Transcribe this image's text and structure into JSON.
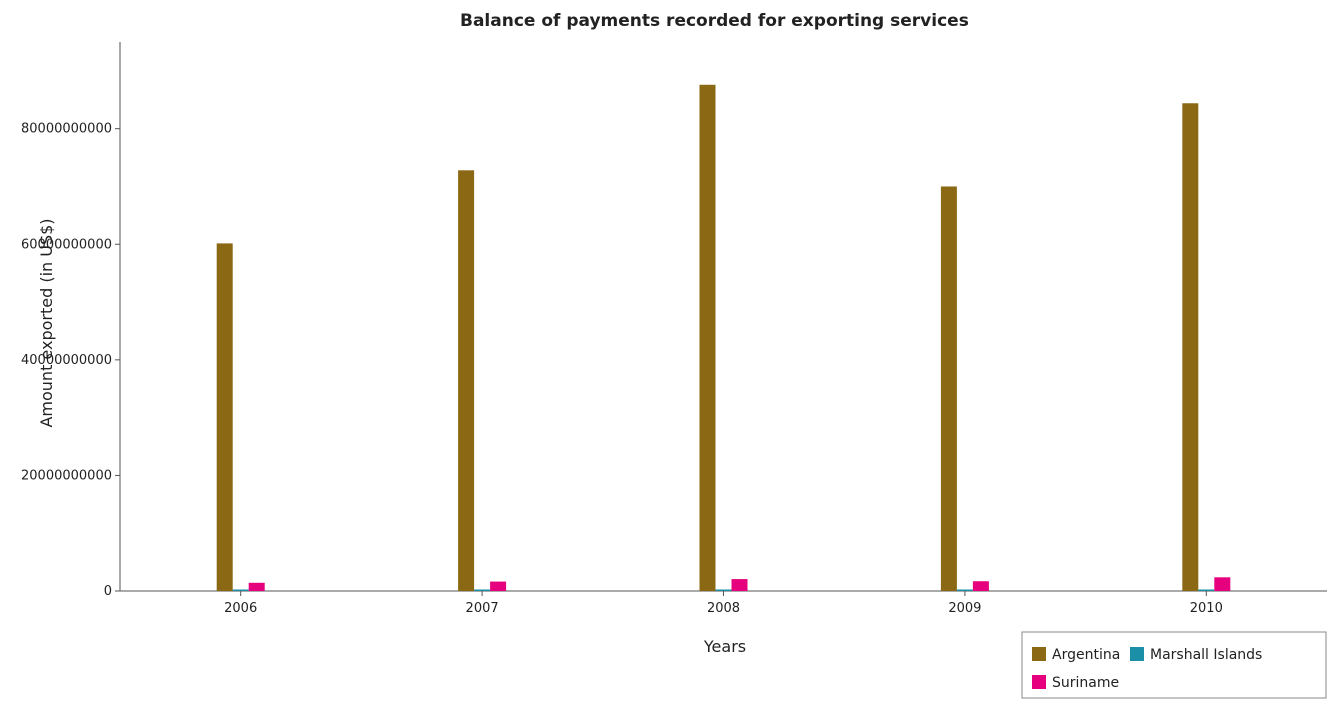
{
  "chart_data": {
    "type": "bar",
    "title": "Balance of payments recorded for exporting services",
    "xlabel": "Years",
    "ylabel": "Amount exported (in US$)",
    "categories": [
      "2006",
      "2007",
      "2008",
      "2009",
      "2010"
    ],
    "series": [
      {
        "name": "Argentina",
        "color": "#8b6914",
        "values": [
          60150000000,
          72800000000,
          87600000000,
          70000000000,
          84400000000
        ]
      },
      {
        "name": "Marshall Islands",
        "color": "#1c8fa8",
        "values": [
          45000000,
          46000000,
          47000000,
          48000000,
          50000000
        ]
      },
      {
        "name": "Suriname",
        "color": "#e6007e",
        "values": [
          1420000000,
          1630000000,
          2060000000,
          1690000000,
          2370000000
        ]
      }
    ],
    "ylim": [
      0,
      95000000000
    ],
    "yticks": [
      0,
      20000000000,
      40000000000,
      60000000000,
      80000000000
    ],
    "ytick_labels": [
      "0",
      "20000000000",
      "40000000000",
      "60000000000",
      "80000000000"
    ],
    "grid": false,
    "legend_position": "bottom-right"
  }
}
